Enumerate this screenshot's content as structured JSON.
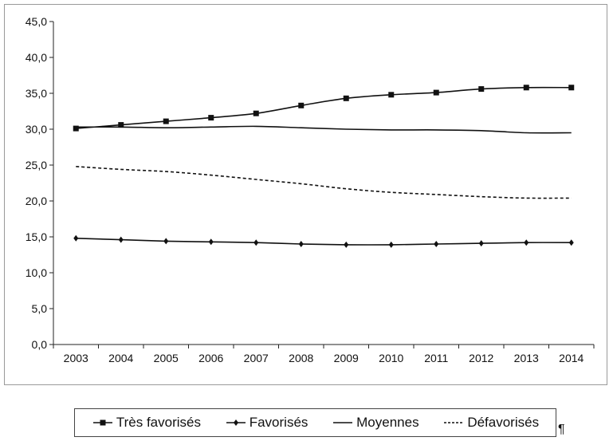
{
  "chart_data": {
    "type": "line",
    "title": "",
    "xlabel": "",
    "ylabel": "",
    "x": [
      "2003",
      "2004",
      "2005",
      "2006",
      "2007",
      "2008",
      "2009",
      "2010",
      "2011",
      "2012",
      "2013",
      "2014"
    ],
    "ylim": [
      0,
      45
    ],
    "yticks": [
      "0,0",
      "5,0",
      "10,0",
      "15,0",
      "20,0",
      "25,0",
      "30,0",
      "35,0",
      "40,0",
      "45,0"
    ],
    "grid": false,
    "legend_position": "bottom",
    "series": [
      {
        "name": "Très favorisés",
        "marker": "square",
        "dash": "solid",
        "color": "#111111",
        "values": [
          30.1,
          30.6,
          31.1,
          31.6,
          32.2,
          33.3,
          34.3,
          34.8,
          35.1,
          35.6,
          35.8,
          35.8
        ]
      },
      {
        "name": "Favorisés",
        "marker": "diamond",
        "dash": "solid",
        "color": "#111111",
        "values": [
          14.8,
          14.6,
          14.4,
          14.3,
          14.2,
          14.0,
          13.9,
          13.9,
          14.0,
          14.1,
          14.2,
          14.2
        ]
      },
      {
        "name": "Moyennes",
        "marker": "none",
        "dash": "solid",
        "color": "#111111",
        "values": [
          30.3,
          30.3,
          30.2,
          30.3,
          30.4,
          30.2,
          30.0,
          29.9,
          29.9,
          29.8,
          29.5,
          29.5
        ]
      },
      {
        "name": "Défavorisés",
        "marker": "none",
        "dash": "dashed",
        "color": "#111111",
        "values": [
          24.8,
          24.4,
          24.1,
          23.6,
          23.0,
          22.4,
          21.7,
          21.2,
          20.9,
          20.6,
          20.4,
          20.4
        ]
      }
    ]
  },
  "pilcrow": "¶"
}
